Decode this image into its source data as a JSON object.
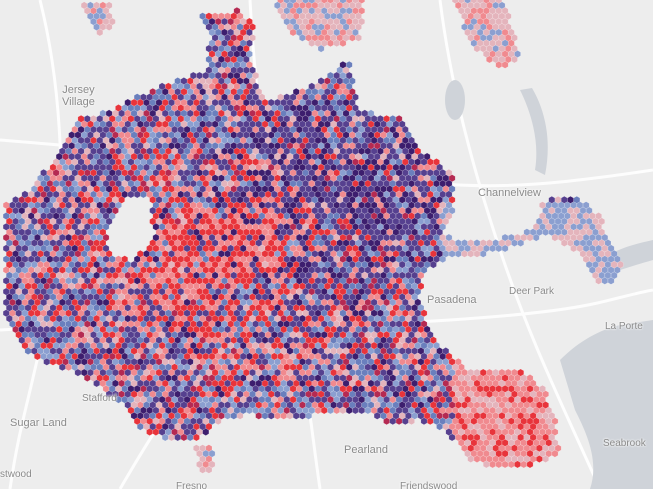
{
  "map": {
    "labels": {
      "jersey_village": [
        "Jersey",
        "Village"
      ],
      "channelview": "Channelview",
      "pasadena": "Pasadena",
      "deer_park": "Deer Park",
      "la_porte": "La Porte",
      "stafford": "Stafford",
      "sugar_land": "Sugar Land",
      "pearland": "Pearland",
      "seabrook": "Seabrook",
      "fresno": "Fresno",
      "friendswood": "Friendswood",
      "edge_fragment": "stwood"
    },
    "legend_colors": [
      "#e8343b",
      "#f08a8f",
      "#e4b4bc",
      "#8b9fd0",
      "#6a7fbd",
      "#56408f",
      "#3d1e6e",
      "#b52a52"
    ],
    "water_color": "#cfd3d9",
    "base_color": "#ededed"
  }
}
